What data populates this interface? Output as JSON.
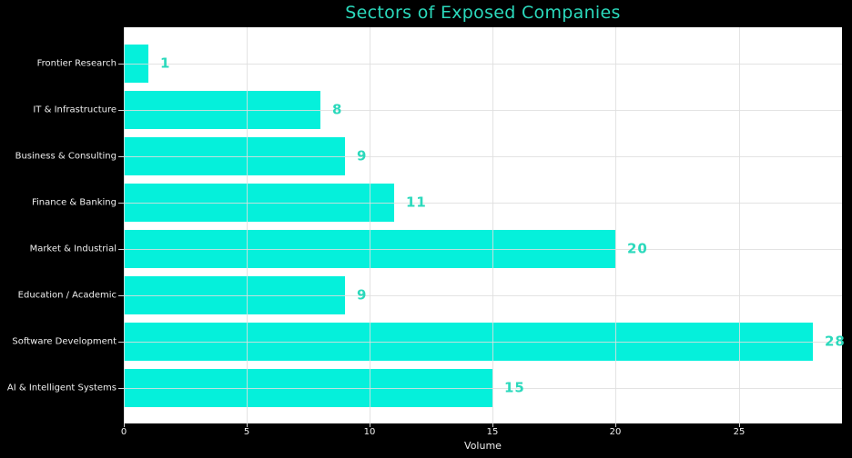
{
  "chart_data": {
    "type": "bar",
    "orientation": "horizontal",
    "title": "Sectors of Exposed Companies",
    "xlabel": "Volume",
    "categories": [
      "Frontier Research",
      "IT & Infrastructure",
      "Business & Consulting",
      "Finance & Banking",
      "Market & Industrial",
      "Education / Academic",
      "Software Development",
      "AI & Intelligent Systems"
    ],
    "values": [
      1,
      8,
      9,
      11,
      20,
      9,
      28,
      15
    ],
    "value_labels": [
      "1",
      "8",
      "9",
      "11",
      "20",
      "9",
      "28",
      "15"
    ],
    "xticks": [
      0,
      5,
      10,
      15,
      20,
      25
    ],
    "xtick_labels": [
      "0",
      "5",
      "10",
      "15",
      "20",
      "25"
    ],
    "xlim": [
      0,
      29.2
    ],
    "grid": true,
    "legend_position": "none",
    "colors": {
      "figure_background": "#000000",
      "plot_background": "#ffffff",
      "bar": "#05F0DB",
      "value_label": "#2BD9BC",
      "title": "#2BD9BC",
      "axis_text": "#efefef",
      "tick_mark": "#cfcfcf",
      "gridline_on_white": "rgba(222,222,222,0.85)",
      "gridline_over_bar": "rgba(235,235,235,0.45)"
    }
  }
}
